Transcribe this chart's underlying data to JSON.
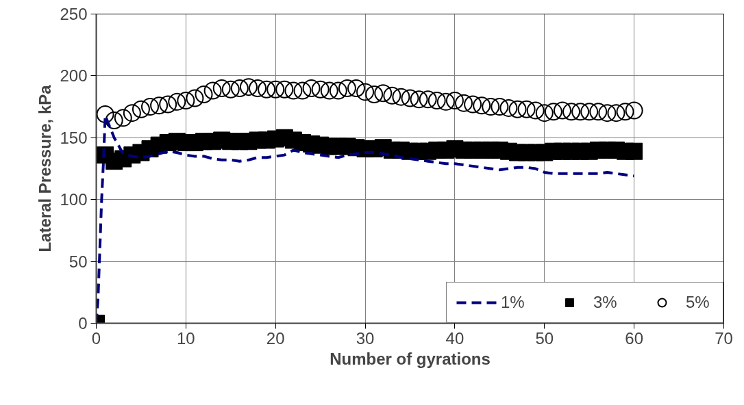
{
  "chart_data": {
    "type": "line",
    "xlabel": "Number of gyrations",
    "ylabel": "Lateral Pressure, kPa",
    "xlim": [
      0,
      70
    ],
    "xticks": [
      0,
      10,
      20,
      30,
      40,
      50,
      60,
      70
    ],
    "ylim": [
      0,
      250
    ],
    "yticks": [
      0,
      50,
      100,
      150,
      200,
      250
    ],
    "grid": true,
    "legend": "bottom right",
    "series": [
      {
        "name": "1%",
        "line_style": "dashed",
        "marker": "none",
        "color": "#000080",
        "x": [
          0,
          0.2,
          0.4,
          0.6,
          0.8,
          1,
          2,
          3,
          4,
          5,
          6,
          7,
          8,
          9,
          10,
          11,
          12,
          13,
          14,
          15,
          16,
          17,
          18,
          19,
          20,
          21,
          22,
          23,
          24,
          25,
          26,
          27,
          28,
          29,
          30,
          31,
          32,
          33,
          34,
          35,
          36,
          37,
          38,
          39,
          40,
          41,
          42,
          43,
          44,
          45,
          46,
          47,
          48,
          49,
          50,
          51,
          52,
          53,
          54,
          55,
          56,
          57,
          58,
          59,
          60
        ],
        "values": [
          0,
          20,
          60,
          100,
          130,
          168,
          150,
          137,
          135,
          134,
          135,
          137,
          139,
          138,
          136,
          135,
          135,
          133,
          132,
          132,
          131,
          132,
          134,
          134,
          135,
          136,
          140,
          138,
          137,
          136,
          135,
          134,
          136,
          137,
          138,
          138,
          137,
          136,
          134,
          133,
          132,
          131,
          130,
          129,
          129,
          128,
          127,
          126,
          125,
          124,
          125,
          126,
          126,
          125,
          122,
          121,
          121,
          121,
          121,
          121,
          121,
          122,
          121,
          120,
          119
        ]
      },
      {
        "name": "3%",
        "type": "scatter",
        "marker": "square",
        "color": "#000000",
        "x": [
          0,
          1,
          2,
          3,
          4,
          5,
          6,
          7,
          8,
          9,
          10,
          11,
          12,
          13,
          14,
          15,
          16,
          17,
          18,
          19,
          20,
          21,
          22,
          23,
          24,
          25,
          26,
          27,
          28,
          29,
          30,
          31,
          32,
          33,
          34,
          35,
          36,
          37,
          38,
          39,
          40,
          41,
          42,
          43,
          44,
          45,
          46,
          47,
          48,
          49,
          50,
          51,
          52,
          53,
          54,
          55,
          56,
          57,
          58,
          59,
          60
        ],
        "values": [
          0,
          136,
          131,
          133,
          136,
          138,
          141,
          144,
          146,
          147,
          146,
          146,
          147,
          147,
          148,
          147,
          147,
          147,
          148,
          148,
          149,
          150,
          148,
          146,
          145,
          144,
          143,
          143,
          143,
          142,
          141,
          141,
          142,
          140,
          140,
          139,
          139,
          139,
          140,
          140,
          141,
          140,
          140,
          140,
          140,
          140,
          139,
          138,
          138,
          138,
          138,
          139,
          139,
          139,
          139,
          139,
          140,
          140,
          140,
          139,
          139
        ]
      },
      {
        "name": "5%",
        "type": "scatter",
        "marker": "circle",
        "color": "#000000",
        "x": [
          1,
          2,
          3,
          4,
          5,
          6,
          7,
          8,
          9,
          10,
          11,
          12,
          13,
          14,
          15,
          16,
          17,
          18,
          19,
          20,
          21,
          22,
          23,
          24,
          25,
          26,
          27,
          28,
          29,
          30,
          31,
          32,
          33,
          34,
          35,
          36,
          37,
          38,
          39,
          40,
          41,
          42,
          43,
          44,
          45,
          46,
          47,
          48,
          49,
          50,
          51,
          52,
          53,
          54,
          55,
          56,
          57,
          58,
          59,
          60
        ],
        "values": [
          169,
          164,
          166,
          170,
          173,
          175,
          176,
          177,
          179,
          180,
          182,
          185,
          188,
          190,
          189,
          190,
          191,
          190,
          189,
          189,
          189,
          188,
          188,
          190,
          189,
          188,
          188,
          190,
          190,
          187,
          185,
          186,
          184,
          183,
          182,
          181,
          181,
          180,
          179,
          180,
          178,
          177,
          176,
          175,
          175,
          174,
          173,
          173,
          172,
          170,
          171,
          172,
          171,
          171,
          171,
          171,
          170,
          170,
          171,
          172
        ]
      }
    ]
  }
}
